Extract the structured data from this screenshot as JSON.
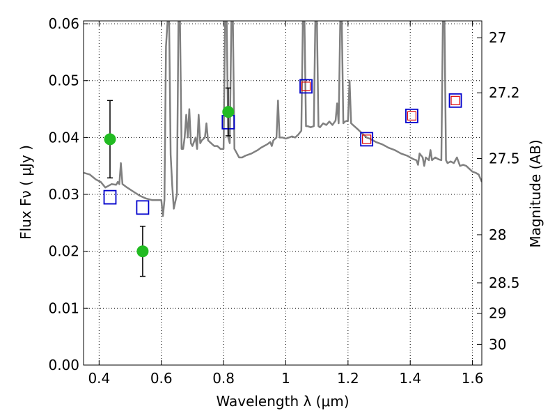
{
  "chart_data": {
    "type": "scatter",
    "xlabel": "Wavelength  λ (μm)",
    "ylabel": "Flux  Fν  ( μJy )",
    "y2label": "Magnitude (AB)",
    "xlim": [
      0.35,
      1.63
    ],
    "ylim": [
      0.0,
      0.0605
    ],
    "xticks": [
      "0.4",
      "0.6",
      "0.8",
      "1",
      "1.2",
      "1.4",
      "1.6"
    ],
    "yticks": [
      "0.00",
      "0.01",
      "0.02",
      "0.03",
      "0.04",
      "0.05",
      "0.06"
    ],
    "magnitude_ticks": [
      {
        "label": "27",
        "mag": 27.0
      },
      {
        "label": "27.2",
        "mag": 27.2
      },
      {
        "label": "27.5",
        "mag": 27.5
      },
      {
        "label": "28",
        "mag": 28.0
      },
      {
        "label": "28.5",
        "mag": 28.5
      },
      {
        "label": "29",
        "mag": 29.0
      },
      {
        "label": "30",
        "mag": 30.0
      }
    ],
    "grid": true,
    "colors": {
      "spectrum": "#808080",
      "observed": "#22bb22",
      "model_box": "#0000cc",
      "model_inner": "#dd0000",
      "errorbar": "#000000"
    },
    "series": [
      {
        "kind": "line",
        "points": [
          [
            0.35,
            0.0338
          ],
          [
            0.37,
            0.0335
          ],
          [
            0.39,
            0.0326
          ],
          [
            0.405,
            0.0322
          ],
          [
            0.42,
            0.0312
          ],
          [
            0.44,
            0.0318
          ],
          [
            0.455,
            0.0317
          ],
          [
            0.46,
            0.0322
          ],
          [
            0.465,
            0.0318
          ],
          [
            0.47,
            0.0355
          ],
          [
            0.475,
            0.0318
          ],
          [
            0.49,
            0.0312
          ],
          [
            0.51,
            0.0305
          ],
          [
            0.53,
            0.0298
          ],
          [
            0.55,
            0.0293
          ],
          [
            0.57,
            0.029
          ],
          [
            0.59,
            0.029
          ],
          [
            0.6,
            0.029
          ],
          [
            0.605,
            0.0262
          ],
          [
            0.61,
            0.029
          ],
          [
            0.615,
            0.056
          ],
          [
            0.62,
            0.0605
          ],
          [
            0.625,
            0.0605
          ],
          [
            0.63,
            0.037
          ],
          [
            0.635,
            0.0315
          ],
          [
            0.64,
            0.0275
          ],
          [
            0.65,
            0.03
          ],
          [
            0.655,
            0.0605
          ],
          [
            0.66,
            0.0605
          ],
          [
            0.665,
            0.038
          ],
          [
            0.67,
            0.038
          ],
          [
            0.675,
            0.04
          ],
          [
            0.68,
            0.044
          ],
          [
            0.685,
            0.04
          ],
          [
            0.69,
            0.045
          ],
          [
            0.695,
            0.039
          ],
          [
            0.7,
            0.0385
          ],
          [
            0.71,
            0.04
          ],
          [
            0.715,
            0.038
          ],
          [
            0.72,
            0.044
          ],
          [
            0.725,
            0.039
          ],
          [
            0.73,
            0.0395
          ],
          [
            0.74,
            0.04
          ],
          [
            0.745,
            0.0425
          ],
          [
            0.75,
            0.0395
          ],
          [
            0.76,
            0.039
          ],
          [
            0.77,
            0.0385
          ],
          [
            0.78,
            0.0385
          ],
          [
            0.79,
            0.038
          ],
          [
            0.8,
            0.038
          ],
          [
            0.805,
            0.0605
          ],
          [
            0.81,
            0.0605
          ],
          [
            0.815,
            0.04
          ],
          [
            0.82,
            0.039
          ],
          [
            0.825,
            0.0605
          ],
          [
            0.83,
            0.0605
          ],
          [
            0.835,
            0.038
          ],
          [
            0.84,
            0.0375
          ],
          [
            0.85,
            0.0365
          ],
          [
            0.86,
            0.0365
          ],
          [
            0.87,
            0.0368
          ],
          [
            0.88,
            0.037
          ],
          [
            0.89,
            0.0372
          ],
          [
            0.9,
            0.0375
          ],
          [
            0.91,
            0.0378
          ],
          [
            0.92,
            0.0382
          ],
          [
            0.93,
            0.0385
          ],
          [
            0.94,
            0.0388
          ],
          [
            0.95,
            0.0392
          ],
          [
            0.955,
            0.0385
          ],
          [
            0.96,
            0.0395
          ],
          [
            0.97,
            0.04
          ],
          [
            0.975,
            0.0465
          ],
          [
            0.98,
            0.04
          ],
          [
            0.99,
            0.04
          ],
          [
            1.0,
            0.0398
          ],
          [
            1.01,
            0.04
          ],
          [
            1.02,
            0.0402
          ],
          [
            1.03,
            0.04
          ],
          [
            1.04,
            0.0405
          ],
          [
            1.05,
            0.0412
          ],
          [
            1.055,
            0.0605
          ],
          [
            1.06,
            0.0605
          ],
          [
            1.065,
            0.042
          ],
          [
            1.07,
            0.042
          ],
          [
            1.08,
            0.0418
          ],
          [
            1.09,
            0.042
          ],
          [
            1.095,
            0.0605
          ],
          [
            1.1,
            0.0605
          ],
          [
            1.105,
            0.042
          ],
          [
            1.11,
            0.0418
          ],
          [
            1.12,
            0.0425
          ],
          [
            1.13,
            0.0422
          ],
          [
            1.14,
            0.0428
          ],
          [
            1.15,
            0.0422
          ],
          [
            1.16,
            0.043
          ],
          [
            1.165,
            0.046
          ],
          [
            1.17,
            0.0425
          ],
          [
            1.175,
            0.0605
          ],
          [
            1.18,
            0.0605
          ],
          [
            1.185,
            0.0425
          ],
          [
            1.19,
            0.0428
          ],
          [
            1.2,
            0.043
          ],
          [
            1.205,
            0.05
          ],
          [
            1.21,
            0.0425
          ],
          [
            1.22,
            0.042
          ],
          [
            1.23,
            0.0415
          ],
          [
            1.24,
            0.041
          ],
          [
            1.25,
            0.0405
          ],
          [
            1.26,
            0.04
          ],
          [
            1.27,
            0.0398
          ],
          [
            1.28,
            0.0395
          ],
          [
            1.29,
            0.0392
          ],
          [
            1.3,
            0.039
          ],
          [
            1.31,
            0.0388
          ],
          [
            1.32,
            0.0385
          ],
          [
            1.33,
            0.0382
          ],
          [
            1.34,
            0.038
          ],
          [
            1.35,
            0.0378
          ],
          [
            1.36,
            0.0375
          ],
          [
            1.37,
            0.0372
          ],
          [
            1.38,
            0.037
          ],
          [
            1.39,
            0.0368
          ],
          [
            1.4,
            0.0365
          ],
          [
            1.41,
            0.0362
          ],
          [
            1.42,
            0.036
          ],
          [
            1.425,
            0.0352
          ],
          [
            1.43,
            0.0372
          ],
          [
            1.44,
            0.0365
          ],
          [
            1.445,
            0.035
          ],
          [
            1.45,
            0.0365
          ],
          [
            1.46,
            0.036
          ],
          [
            1.465,
            0.0378
          ],
          [
            1.47,
            0.036
          ],
          [
            1.48,
            0.0365
          ],
          [
            1.49,
            0.0362
          ],
          [
            1.5,
            0.036
          ],
          [
            1.505,
            0.0605
          ],
          [
            1.51,
            0.0605
          ],
          [
            1.515,
            0.036
          ],
          [
            1.52,
            0.0355
          ],
          [
            1.53,
            0.0358
          ],
          [
            1.54,
            0.0355
          ],
          [
            1.55,
            0.0365
          ],
          [
            1.56,
            0.035
          ],
          [
            1.57,
            0.0352
          ],
          [
            1.58,
            0.035
          ],
          [
            1.59,
            0.0345
          ],
          [
            1.6,
            0.034
          ],
          [
            1.61,
            0.0338
          ],
          [
            1.62,
            0.0335
          ],
          [
            1.63,
            0.0322
          ]
        ]
      },
      {
        "kind": "points_with_errors",
        "points": [
          {
            "x": 0.435,
            "y": 0.0397,
            "err": 0.0068
          },
          {
            "x": 0.54,
            "y": 0.02,
            "err": 0.0044
          },
          {
            "x": 0.815,
            "y": 0.0445,
            "err": 0.0042
          }
        ]
      },
      {
        "kind": "model_boxes",
        "points": [
          {
            "x": 0.435,
            "y": 0.0295
          },
          {
            "x": 0.54,
            "y": 0.0277
          },
          {
            "x": 0.815,
            "y": 0.0427
          }
        ]
      },
      {
        "kind": "model_boxes_marked",
        "points": [
          {
            "x": 1.065,
            "y": 0.049
          },
          {
            "x": 1.26,
            "y": 0.0397
          },
          {
            "x": 1.405,
            "y": 0.0438
          },
          {
            "x": 1.545,
            "y": 0.0465
          }
        ]
      }
    ]
  }
}
